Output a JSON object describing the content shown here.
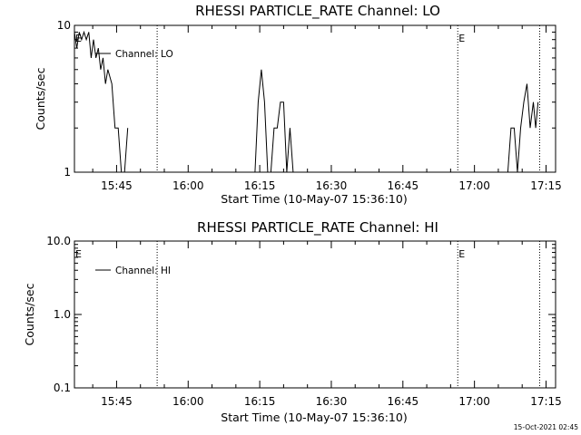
{
  "footer": {
    "timestamp": "15-Oct-2021 02:45"
  },
  "chart_data": [
    {
      "type": "line",
      "title": "RHESSI PARTICLE_RATE Channel: LO",
      "xlabel": "Start Time (10-May-07 15:36:10)",
      "ylabel": "Counts/sec",
      "y_scale": "log",
      "ylim": [
        1,
        10
      ],
      "y_ticks": [
        1,
        10
      ],
      "y_tick_labels": [
        "1",
        "10"
      ],
      "x_tick_labels": [
        "15:45",
        "16:00",
        "16:15",
        "16:30",
        "16:45",
        "17:00",
        "17:15"
      ],
      "xlim": [
        "15:36:10",
        "17:17:00"
      ],
      "legend": {
        "label": "Channel: LO",
        "position": "top-left"
      },
      "flags": [
        {
          "label": "E",
          "time": "15:36:10"
        },
        {
          "label": "E",
          "time": "16:56:30"
        }
      ],
      "vlines": [
        "15:53:30",
        "16:56:30",
        "17:13:40"
      ],
      "series": [
        {
          "x": [
            "15:36:10",
            "15:36:40",
            "15:37:10",
            "15:37:40",
            "15:38:10",
            "15:38:40",
            "15:39:10",
            "15:39:40",
            "15:40:10",
            "15:40:40",
            "15:41:10",
            "15:41:40",
            "15:42:10",
            "15:42:40",
            "15:43:10",
            "15:44:00",
            "15:44:40",
            "15:45:20",
            "15:46:00",
            "15:46:40",
            "15:47:20",
            "16:14:00",
            "16:14:40",
            "16:15:20",
            "16:16:00",
            "16:16:40",
            "16:17:20",
            "16:18:00",
            "16:18:40",
            "16:19:20",
            "16:20:00",
            "16:20:40",
            "16:21:20",
            "16:22:00",
            "17:03:00",
            "17:07:00",
            "17:07:40",
            "17:08:20",
            "17:09:00",
            "17:09:40",
            "17:10:20",
            "17:11:00",
            "17:11:40",
            "17:12:20",
            "17:12:50",
            "17:13:20"
          ],
          "values": [
            9,
            7,
            9,
            8,
            9,
            8,
            9,
            6,
            8,
            6,
            7,
            5,
            6,
            4,
            5,
            4,
            2,
            2,
            1,
            1,
            2,
            1,
            3,
            5,
            3,
            1,
            1,
            2,
            2,
            3,
            3,
            1,
            2,
            1,
            1,
            1,
            2,
            2,
            1,
            2,
            3,
            4,
            2,
            3,
            2,
            3
          ]
        }
      ]
    },
    {
      "type": "line",
      "title": "RHESSI PARTICLE_RATE Channel: HI",
      "xlabel": "Start Time (10-May-07 15:36:10)",
      "ylabel": "Counts/sec",
      "y_scale": "log",
      "ylim": [
        0.1,
        10
      ],
      "y_ticks": [
        0.1,
        1,
        10
      ],
      "y_tick_labels": [
        "0.1",
        "1.0",
        "10.0"
      ],
      "x_tick_labels": [
        "15:45",
        "16:00",
        "16:15",
        "16:30",
        "16:45",
        "17:00",
        "17:15"
      ],
      "xlim": [
        "15:36:10",
        "17:17:00"
      ],
      "legend": {
        "label": "Channel: HI",
        "position": "top-left"
      },
      "flags": [
        {
          "label": "E",
          "time": "15:36:10"
        },
        {
          "label": "E",
          "time": "16:56:30"
        }
      ],
      "vlines": [
        "15:53:30",
        "16:56:30",
        "17:13:40"
      ],
      "series": [
        {
          "x": [],
          "values": []
        }
      ]
    }
  ]
}
